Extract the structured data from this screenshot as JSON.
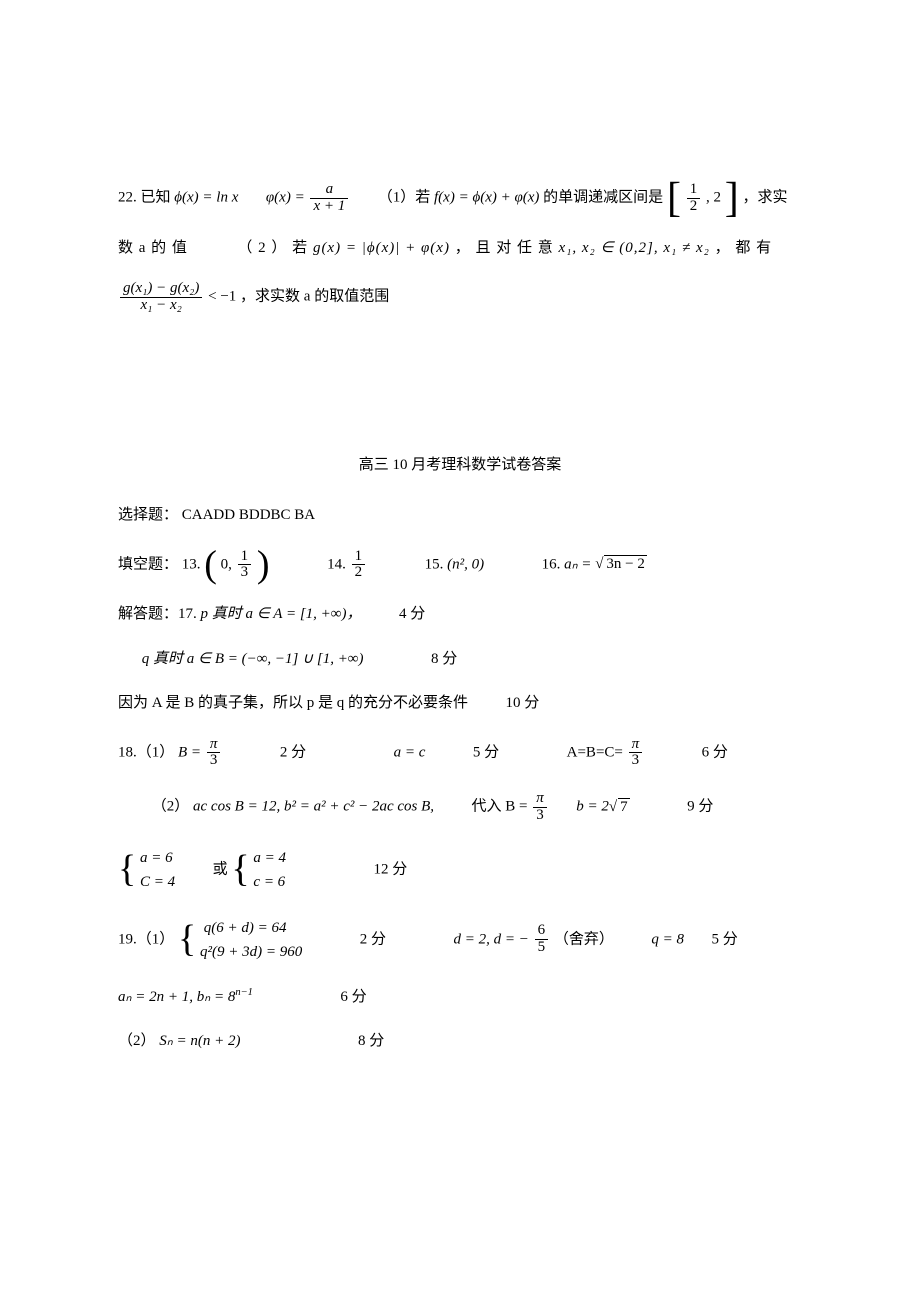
{
  "q22": {
    "line1_a": "22. 已知",
    "phi_eq": "ϕ(x) = ln x",
    "psi_lhs": "φ(x) =",
    "psi_num": "a",
    "psi_den": "x + 1",
    "part1_label": "（1）若",
    "f_eq": "f(x) = ϕ(x) + φ(x)",
    "interval_txt": "的单调递减区间是",
    "int_num": "1",
    "int_den": "2",
    "int_right": ", 2",
    "line1_end": "，求实",
    "line2_a": "数 a 的 值",
    "part2_label": "（ 2 ） 若",
    "g_eq": "g(x) = |ϕ(x)| + φ(x)",
    "cond_a": "， 且 对 任 意 ",
    "x12_in": "x₁, x₂ ∈ (0,2], x₁ ≠ x₂",
    "line2_end": "， 都 有",
    "frac_num": "g(x₁) − g(x₂)",
    "frac_den": "x₁ − x₂",
    "lt": " < −1",
    "tail": "，求实数 a 的取值范围"
  },
  "title": "高三 10 月考理科数学试卷答案",
  "choice": {
    "label": "选择题：",
    "seq": "CAADD  BDDBC  BA"
  },
  "fill": {
    "label": "填空题：",
    "q13": "13.",
    "a13_num": "1",
    "a13_den": "3",
    "q14": "14.",
    "a14_num": "1",
    "a14_den": "2",
    "q15": "15.",
    "a15": "(n², 0)",
    "q16": "16.",
    "a16_lhs": "aₙ =",
    "a16_rad": "3n − 2"
  },
  "ans17": {
    "label": "解答题：17.",
    "p_true": " p 真时 a ∈ A = [1, +∞)，",
    "score1": "4 分",
    "q_true": "q 真时 a ∈ B = (−∞, −1] ∪ [1, +∞)",
    "score2": "8 分",
    "concl": "因为 A 是 B 的真子集，所以 p 是 q 的充分不必要条件",
    "score3": "10 分"
  },
  "ans18": {
    "line1_a": "18.（1）",
    "B_eq": "B =",
    "pi": "π",
    "three": "3",
    "s2": "2 分",
    "a_eq_c": "a = c",
    "s5": "5 分",
    "ABC": "A=B=C=",
    "s6": "6 分",
    "line2_a": "（2） ",
    "eq2": "ac cos B = 12, b² = a² + c² − 2ac cos B,",
    "subst": "代入 B =",
    "b_eq": "b = 2",
    "b_rad": "7",
    "s9": "9 分",
    "case_a1": "a = 6",
    "case_c1": "C = 4",
    "or": "或",
    "case_a2": "a = 4",
    "case_c2": "c = 6",
    "s12": "12 分"
  },
  "ans19": {
    "line1_a": "19.（1）",
    "sys1": "q(6 + d) = 64",
    "sys2": "q²(9 + 3d) = 960",
    "s2": "2 分",
    "d_eq": "d = 2, d = −",
    "dnum": "6",
    "dden": "5",
    "discard": "（舍弃）",
    "q_eq": "q = 8",
    "s5": "5 分",
    "an_bn": "aₙ = 2n + 1, bₙ = 8",
    "exp": "n−1",
    "s6": "6 分",
    "line2_a": "（2）",
    "Sn": "Sₙ = n(n + 2)",
    "s8": "8 分"
  }
}
